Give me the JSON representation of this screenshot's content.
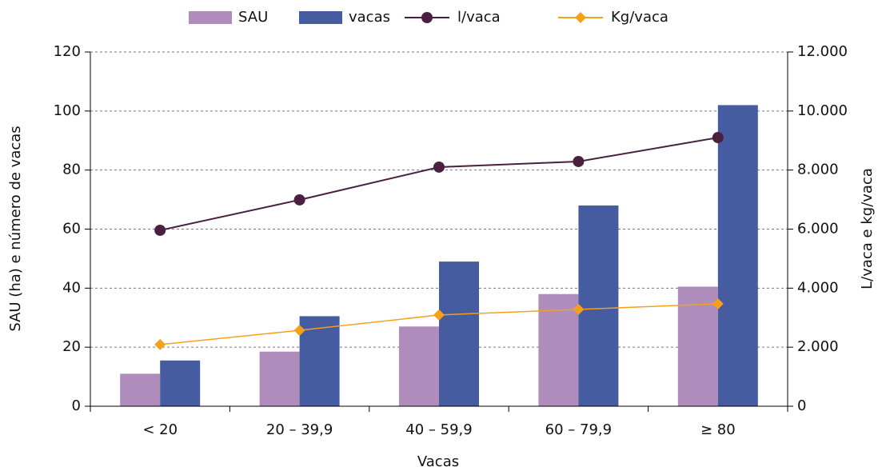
{
  "chart_data": {
    "type": "bar",
    "categories": [
      "< 20",
      "20 – 39,9",
      "40 – 59,9",
      "60 – 79,9",
      "≥ 80"
    ],
    "series": [
      {
        "name": "SAU",
        "color": "#b08cbc",
        "values": [
          11,
          18.5,
          27,
          38,
          40.5
        ]
      },
      {
        "name": "vacas",
        "color": "#465ca0",
        "values": [
          15.5,
          30.5,
          49,
          68,
          102
        ]
      },
      {
        "name": "l/vaca",
        "color": "#4a2040",
        "type": "line",
        "marker": "circle",
        "axis": "y2",
        "values": [
          5960,
          6990,
          8100,
          8290,
          9100
        ]
      },
      {
        "name": "Kg/vaca",
        "color": "#f5a01a",
        "type": "line",
        "marker": "diamond",
        "axis": "y2",
        "values": [
          2090,
          2570,
          3090,
          3280,
          3470
        ]
      }
    ],
    "xlabel": "Vacas",
    "ylabel": "SAU (ha) e número de vacas",
    "y2label": "L/vaca e kg/vaca",
    "ylim": [
      0,
      120
    ],
    "yticks": [
      0,
      20,
      40,
      60,
      80,
      100,
      120
    ],
    "y2lim": [
      0,
      12000
    ],
    "y2ticks": [
      0,
      {
        "value": 2000,
        "label": "2.000"
      },
      {
        "value": 4000,
        "label": "4.000"
      },
      {
        "value": 6000,
        "label": "6.000"
      },
      {
        "value": 8000,
        "label": "8.000"
      },
      {
        "value": 10000,
        "label": "10.000"
      },
      {
        "value": 12000,
        "label": "12.000"
      }
    ],
    "grid": true,
    "legend": "top"
  }
}
